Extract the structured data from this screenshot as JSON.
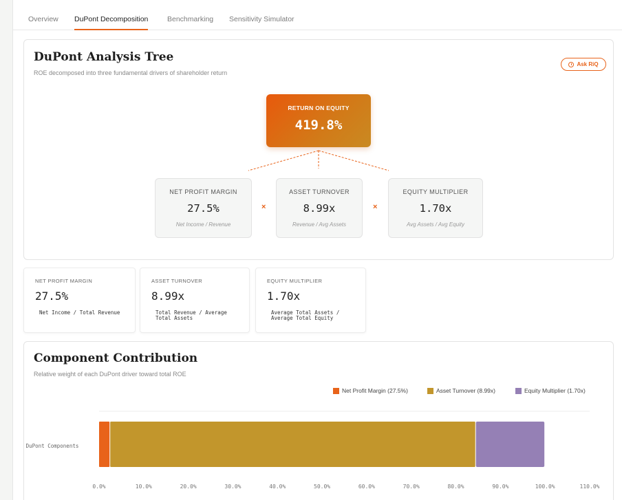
{
  "tabs": [
    {
      "label": "Overview",
      "active": false
    },
    {
      "label": "DuPont Decomposition",
      "active": true
    },
    {
      "label": "Benchmarking",
      "active": false
    },
    {
      "label": "Sensitivity Simulator",
      "active": false
    }
  ],
  "tree_card": {
    "title": "DuPont Analysis Tree",
    "subtitle": "ROE decomposed into three fundamental drivers of shareholder return",
    "ask_button": "Ask RiQ",
    "roe": {
      "label": "RETURN ON EQUITY",
      "value": "419.8%"
    },
    "operator": "×",
    "drivers": [
      {
        "label": "NET PROFIT MARGIN",
        "value": "27.5%",
        "formula": "Net Income / Revenue"
      },
      {
        "label": "ASSET TURNOVER",
        "value": "8.99x",
        "formula": "Revenue / Avg Assets"
      },
      {
        "label": "EQUITY MULTIPLIER",
        "value": "1.70x",
        "formula": "Avg Assets / Avg Equity"
      }
    ]
  },
  "metric_cards": [
    {
      "label": "NET PROFIT MARGIN",
      "value": "27.5%",
      "formula": "Net Income / Total Revenue"
    },
    {
      "label": "ASSET TURNOVER",
      "value": "8.99x",
      "formula": "Total Revenue / Average Total Assets"
    },
    {
      "label": "EQUITY MULTIPLIER",
      "value": "1.70x",
      "formula": "Average Total Assets / Average Total Equity"
    }
  ],
  "contribution_card": {
    "title": "Component Contribution",
    "subtitle": "Relative weight of each DuPont driver toward total ROE"
  },
  "chart_data": {
    "type": "bar",
    "orientation": "horizontal",
    "stacked": true,
    "categories": [
      "DuPont Components"
    ],
    "series": [
      {
        "name": "Net Profit Margin (27.5%)",
        "color": "#e8631a",
        "values": [
          2.5
        ]
      },
      {
        "name": "Asset Turnover (8.99x)",
        "color": "#c2962c",
        "values": [
          82.0
        ]
      },
      {
        "name": "Equity Multiplier (1.70x)",
        "color": "#9580b5",
        "values": [
          15.5
        ]
      }
    ],
    "xlim": [
      0,
      110
    ],
    "xticks": [
      "0.0%",
      "10.0%",
      "20.0%",
      "30.0%",
      "40.0%",
      "50.0%",
      "60.0%",
      "70.0%",
      "80.0%",
      "90.0%",
      "100.0%",
      "110.0%"
    ],
    "legend_position": "top-right",
    "grid": false
  }
}
